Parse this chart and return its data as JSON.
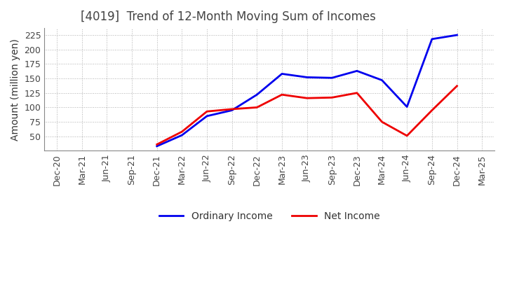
{
  "title": "[4019]  Trend of 12-Month Moving Sum of Incomes",
  "ylabel": "Amount (million yen)",
  "background_color": "#ffffff",
  "grid_color": "#b0b0b0",
  "x_labels": [
    "Dec-20",
    "Mar-21",
    "Jun-21",
    "Sep-21",
    "Dec-21",
    "Mar-22",
    "Jun-22",
    "Sep-22",
    "Dec-22",
    "Mar-23",
    "Jun-23",
    "Sep-23",
    "Dec-23",
    "Mar-24",
    "Jun-24",
    "Sep-24",
    "Dec-24",
    "Mar-25"
  ],
  "ordinary_income": {
    "label": "Ordinary Income",
    "color": "#0000ee",
    "data_x": [
      "Dec-21",
      "Mar-22",
      "Jun-22",
      "Sep-22",
      "Dec-22",
      "Mar-23",
      "Jun-23",
      "Sep-23",
      "Dec-23",
      "Mar-24",
      "Jun-24",
      "Sep-24",
      "Dec-24"
    ],
    "data_y": [
      33,
      52,
      85,
      95,
      122,
      158,
      152,
      151,
      163,
      147,
      101,
      218,
      225
    ]
  },
  "net_income": {
    "label": "Net Income",
    "color": "#ee0000",
    "data_x": [
      "Dec-21",
      "Mar-22",
      "Jun-22",
      "Sep-22",
      "Dec-22",
      "Mar-23",
      "Jun-23",
      "Sep-23",
      "Dec-23",
      "Mar-24",
      "Jun-24",
      "Sep-24",
      "Dec-24"
    ],
    "data_y": [
      36,
      58,
      93,
      97,
      100,
      122,
      116,
      117,
      125,
      75,
      51,
      95,
      137
    ]
  },
  "ylim": [
    25,
    237
  ],
  "yticks": [
    50,
    75,
    100,
    125,
    150,
    175,
    200,
    225
  ],
  "title_fontsize": 12,
  "axis_label_fontsize": 10,
  "tick_fontsize": 9,
  "legend_fontsize": 10,
  "line_width": 2.0,
  "title_color": "#444444"
}
